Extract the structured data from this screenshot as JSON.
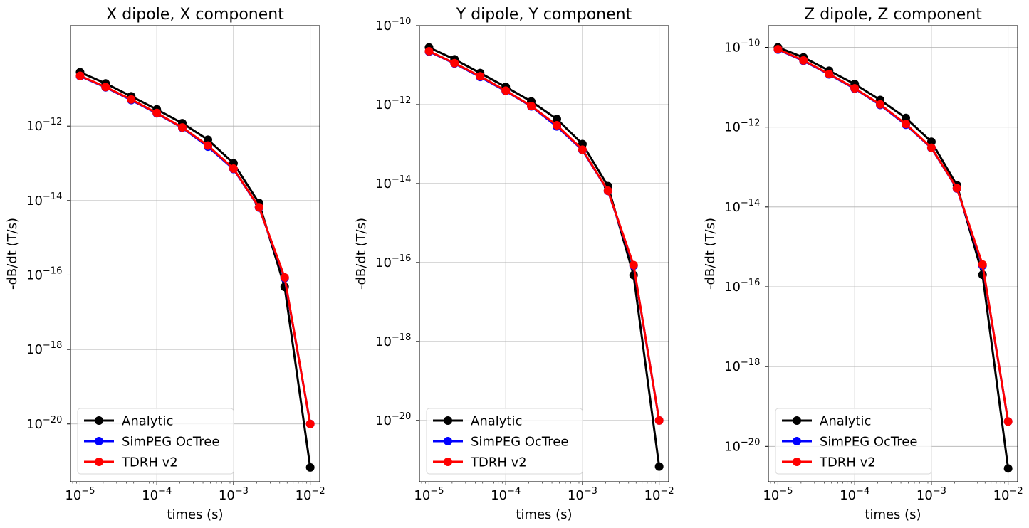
{
  "chart_data": [
    {
      "type": "line",
      "title": "X dipole, X component",
      "xlabel": "times (s)",
      "ylabel": "-dB/dt (T/s)",
      "xscale": "log",
      "yscale": "log",
      "xlim": [
        7.5e-06,
        0.0133
      ],
      "ylim": [
        2.8e-22,
        5e-10
      ],
      "xticks": [
        {
          "v": 1e-05,
          "base": "10",
          "exp": "−5"
        },
        {
          "v": 0.0001,
          "base": "10",
          "exp": "−4"
        },
        {
          "v": 0.001,
          "base": "10",
          "exp": "−3"
        },
        {
          "v": 0.01,
          "base": "10",
          "exp": "−2"
        }
      ],
      "yticks": [
        {
          "v": 1e-12,
          "base": "10",
          "exp": "−12"
        },
        {
          "v": 1e-14,
          "base": "10",
          "exp": "−14"
        },
        {
          "v": 1e-16,
          "base": "10",
          "exp": "−16"
        },
        {
          "v": 1e-18,
          "base": "10",
          "exp": "−18"
        },
        {
          "v": 1e-20,
          "base": "10",
          "exp": "−20"
        }
      ],
      "grid": true,
      "legend_position": "lower-left",
      "x": [
        1e-05,
        2.15e-05,
        4.64e-05,
        0.0001,
        0.000215,
        0.000464,
        0.001,
        0.00215,
        0.00464,
        0.01
      ],
      "series": [
        {
          "name": "Analytic",
          "color": "#000000",
          "values": [
            2.8e-11,
            1.4e-11,
            6.3e-12,
            2.8e-12,
            1.2e-12,
            4.3e-13,
            1e-13,
            8.6e-15,
            4.8e-17,
            6.8e-22
          ]
        },
        {
          "name": "SimPEG OcTree",
          "color": "#0000ff",
          "values": [
            2.2e-11,
            1.1e-11,
            5e-12,
            2.2e-12,
            9e-13,
            2.8e-13,
            7e-14,
            6.5e-15,
            8.3e-17,
            1e-20
          ]
        },
        {
          "name": "TDRH v2",
          "color": "#ff0000",
          "values": [
            2.25e-11,
            1.12e-11,
            5.2e-12,
            2.25e-12,
            9.2e-13,
            3e-13,
            7.2e-14,
            6.6e-15,
            8.6e-17,
            1e-20
          ]
        }
      ]
    },
    {
      "type": "line",
      "title": "Y dipole, Y component",
      "xlabel": "times (s)",
      "ylabel": "-dB/dt (T/s)",
      "xscale": "log",
      "yscale": "log",
      "xlim": [
        7.5e-06,
        0.0133
      ],
      "ylim": [
        2.8e-22,
        1e-10
      ],
      "xticks": [
        {
          "v": 1e-05,
          "base": "10",
          "exp": "−5"
        },
        {
          "v": 0.0001,
          "base": "10",
          "exp": "−4"
        },
        {
          "v": 0.001,
          "base": "10",
          "exp": "−3"
        },
        {
          "v": 0.01,
          "base": "10",
          "exp": "−2"
        }
      ],
      "yticks": [
        {
          "v": 1e-10,
          "base": "10",
          "exp": "−10"
        },
        {
          "v": 1e-12,
          "base": "10",
          "exp": "−12"
        },
        {
          "v": 1e-14,
          "base": "10",
          "exp": "−14"
        },
        {
          "v": 1e-16,
          "base": "10",
          "exp": "−16"
        },
        {
          "v": 1e-18,
          "base": "10",
          "exp": "−18"
        },
        {
          "v": 1e-20,
          "base": "10",
          "exp": "−20"
        }
      ],
      "grid": true,
      "legend_position": "lower-left",
      "x": [
        1e-05,
        2.15e-05,
        4.64e-05,
        0.0001,
        0.000215,
        0.000464,
        0.001,
        0.00215,
        0.00464,
        0.01
      ],
      "series": [
        {
          "name": "Analytic",
          "color": "#000000",
          "values": [
            2.8e-11,
            1.4e-11,
            6.3e-12,
            2.8e-12,
            1.2e-12,
            4.3e-13,
            1e-13,
            8.6e-15,
            4.8e-17,
            6.8e-22
          ]
        },
        {
          "name": "SimPEG OcTree",
          "color": "#0000ff",
          "values": [
            2.2e-11,
            1.1e-11,
            5e-12,
            2.2e-12,
            9e-13,
            2.8e-13,
            7e-14,
            6.5e-15,
            8.3e-17,
            1e-20
          ]
        },
        {
          "name": "TDRH v2",
          "color": "#ff0000",
          "values": [
            2.25e-11,
            1.12e-11,
            5.2e-12,
            2.25e-12,
            9.2e-13,
            3e-13,
            7.2e-14,
            6.6e-15,
            8.6e-17,
            1e-20
          ]
        }
      ]
    },
    {
      "type": "line",
      "title": "Z dipole, Z component",
      "xlabel": "times (s)",
      "ylabel": "-dB/dt (T/s)",
      "xscale": "log",
      "yscale": "log",
      "xlim": [
        7.5e-06,
        0.0133
      ],
      "ylim": [
        1.3e-21,
        3.5e-10
      ],
      "xticks": [
        {
          "v": 1e-05,
          "base": "10",
          "exp": "−5"
        },
        {
          "v": 0.0001,
          "base": "10",
          "exp": "−4"
        },
        {
          "v": 0.001,
          "base": "10",
          "exp": "−3"
        },
        {
          "v": 0.01,
          "base": "10",
          "exp": "−2"
        }
      ],
      "yticks": [
        {
          "v": 1e-10,
          "base": "10",
          "exp": "−10"
        },
        {
          "v": 1e-12,
          "base": "10",
          "exp": "−12"
        },
        {
          "v": 1e-14,
          "base": "10",
          "exp": "−14"
        },
        {
          "v": 1e-16,
          "base": "10",
          "exp": "−16"
        },
        {
          "v": 1e-18,
          "base": "10",
          "exp": "−18"
        },
        {
          "v": 1e-20,
          "base": "10",
          "exp": "−20"
        }
      ],
      "grid": true,
      "legend_position": "lower-left",
      "x": [
        1e-05,
        2.15e-05,
        4.64e-05,
        0.0001,
        0.000215,
        0.000464,
        0.001,
        0.00215,
        0.00464,
        0.01
      ],
      "series": [
        {
          "name": "Analytic",
          "color": "#000000",
          "values": [
            1e-10,
            5.6e-11,
            2.6e-11,
            1.2e-11,
            4.8e-12,
            1.7e-12,
            4.3e-13,
            3.5e-14,
            2e-16,
            2.8e-21
          ]
        },
        {
          "name": "SimPEG OcTree",
          "color": "#0000ff",
          "values": [
            8.8e-11,
            4.6e-11,
            2.1e-11,
            9.2e-12,
            3.6e-12,
            1.15e-12,
            3e-13,
            2.9e-14,
            3.4e-16,
            4.2e-20
          ]
        },
        {
          "name": "TDRH v2",
          "color": "#ff0000",
          "values": [
            9e-11,
            4.7e-11,
            2.15e-11,
            9.4e-12,
            3.7e-12,
            1.2e-12,
            3.05e-13,
            2.95e-14,
            3.6e-16,
            4.2e-20
          ]
        }
      ]
    }
  ]
}
